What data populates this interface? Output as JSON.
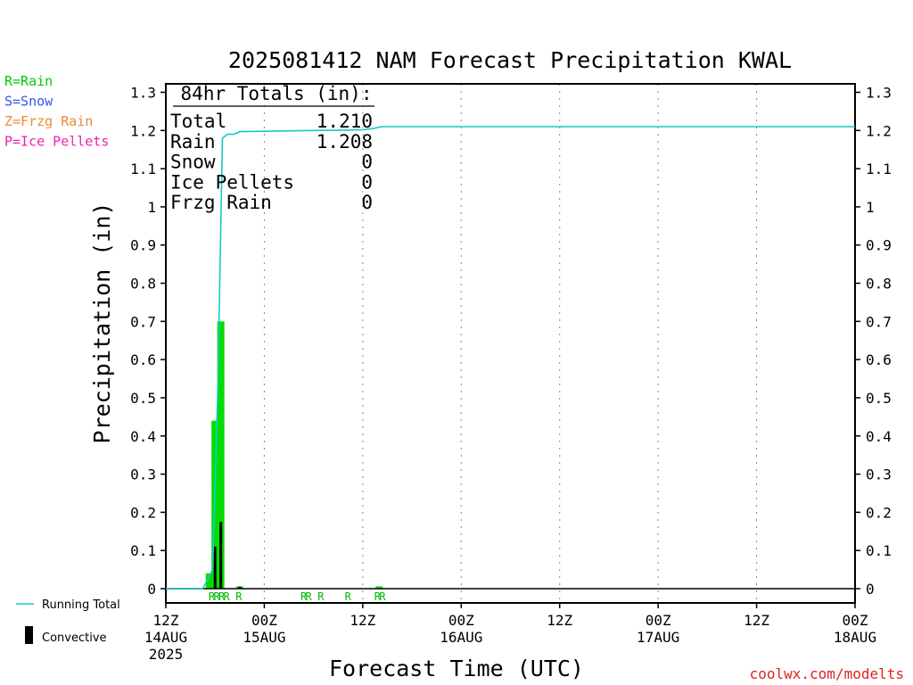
{
  "chart_data": {
    "type": "bar",
    "title": "2025081412 NAM Forecast Precipitation KWAL",
    "ylabel": "Precipitation (in)",
    "xlabel": "Forecast Time (UTC)",
    "ylim": [
      0,
      1.3
    ],
    "xlim_hours": [
      0,
      84
    ],
    "yticks": [
      0,
      0.1,
      0.2,
      0.3,
      0.4,
      0.5,
      0.6,
      0.7,
      0.8,
      0.9,
      1,
      1.1,
      1.2,
      1.3
    ],
    "ytick_labels": [
      "0",
      "0.1",
      "0.2",
      "0.3",
      "0.4",
      "0.5",
      "0.6",
      "0.7",
      "0.8",
      "0.9",
      "1",
      "1.1",
      "1.2",
      "1.3"
    ],
    "xticks": [
      {
        "hour": 0,
        "time": "12Z",
        "date": "14AUG",
        "year": "2025"
      },
      {
        "hour": 9,
        "time": "00Z",
        "date": "15AUG",
        "year": ""
      },
      {
        "hour": 18,
        "time": "12Z",
        "date": "",
        "year": ""
      },
      {
        "hour": 27,
        "time": "00Z",
        "date": "16AUG",
        "year": ""
      },
      {
        "hour": 36,
        "time": "12Z",
        "date": "",
        "year": ""
      },
      {
        "hour": 45,
        "time": "00Z",
        "date": "17AUG",
        "year": ""
      },
      {
        "hour": 54,
        "time": "12Z",
        "date": "",
        "year": ""
      },
      {
        "hour": 63,
        "time": "00Z",
        "date": "18AUG",
        "year": ""
      }
    ],
    "grid": "vertical dotted",
    "precip_bars": {
      "name": "Rain",
      "color": "#00dd00",
      "points": [
        {
          "hour": 5.3,
          "value": 0.04
        },
        {
          "hour": 6.0,
          "value": 0.44
        },
        {
          "hour": 6.7,
          "value": 0.7
        },
        {
          "hour": 9.0,
          "value": 0.006
        },
        {
          "hour": 26.0,
          "value": 0.006
        }
      ]
    },
    "convective_bars": {
      "name": "Convective",
      "color": "#000000",
      "points": [
        {
          "hour": 6.0,
          "value": 0.11
        },
        {
          "hour": 6.7,
          "value": 0.175
        },
        {
          "hour": 9.0,
          "value": 0.005
        }
      ]
    },
    "running_total": {
      "name": "Running Total",
      "color": "#19c8c8",
      "points": [
        {
          "hour": 0,
          "value": 0
        },
        {
          "hour": 4.5,
          "value": 0.0
        },
        {
          "hour": 5.0,
          "value": 0.02
        },
        {
          "hour": 5.7,
          "value": 0.05
        },
        {
          "hour": 6.3,
          "value": 0.5
        },
        {
          "hour": 6.9,
          "value": 1.18
        },
        {
          "hour": 7.5,
          "value": 1.19
        },
        {
          "hour": 8.3,
          "value": 1.19
        },
        {
          "hour": 9.0,
          "value": 1.197
        },
        {
          "hour": 18.0,
          "value": 1.2
        },
        {
          "hour": 22.0,
          "value": 1.201
        },
        {
          "hour": 24.0,
          "value": 1.202
        },
        {
          "hour": 25.2,
          "value": 1.205
        },
        {
          "hour": 26.3,
          "value": 1.21
        },
        {
          "hour": 84.0,
          "value": 1.21
        }
      ]
    },
    "precip_type_markers": [
      {
        "hour": 5.6,
        "code": "R"
      },
      {
        "hour": 6.2,
        "code": "R"
      },
      {
        "hour": 6.8,
        "code": "R"
      },
      {
        "hour": 7.4,
        "code": "R"
      },
      {
        "hour": 8.9,
        "code": "R"
      },
      {
        "hour": 16.8,
        "code": "R"
      },
      {
        "hour": 17.4,
        "code": "R"
      },
      {
        "hour": 18.9,
        "code": "R"
      },
      {
        "hour": 22.2,
        "code": "R"
      },
      {
        "hour": 25.8,
        "code": "R"
      },
      {
        "hour": 26.4,
        "code": "R"
      }
    ],
    "totals_box": {
      "heading": "84hr Totals (in):",
      "rows": [
        {
          "label": "Total",
          "value": "1.210"
        },
        {
          "label": "Rain",
          "value": "1.208"
        },
        {
          "label": "Snow",
          "value": "0"
        },
        {
          "label": "Ice Pellets",
          "value": "0"
        },
        {
          "label": "Frzg Rain",
          "value": "0"
        }
      ]
    }
  },
  "type_legend": [
    {
      "text": "R=Rain",
      "color": "#00cc00"
    },
    {
      "text": "S=Snow",
      "color": "#3355ee"
    },
    {
      "text": "Z=Frzg Rain",
      "color": "#ee8833"
    },
    {
      "text": "P=Ice Pellets",
      "color": "#ee22aa"
    }
  ],
  "series_legend": {
    "running_total": "Running Total",
    "convective": "Convective"
  },
  "credit": "coolwx.com/modelts",
  "colors": {
    "rain_bar": "#00dd00",
    "convective_bar": "#000000",
    "running_total": "#19c8c8",
    "marker_text": "#00bb00",
    "credit": "#dd2222",
    "grid": "#888888"
  }
}
